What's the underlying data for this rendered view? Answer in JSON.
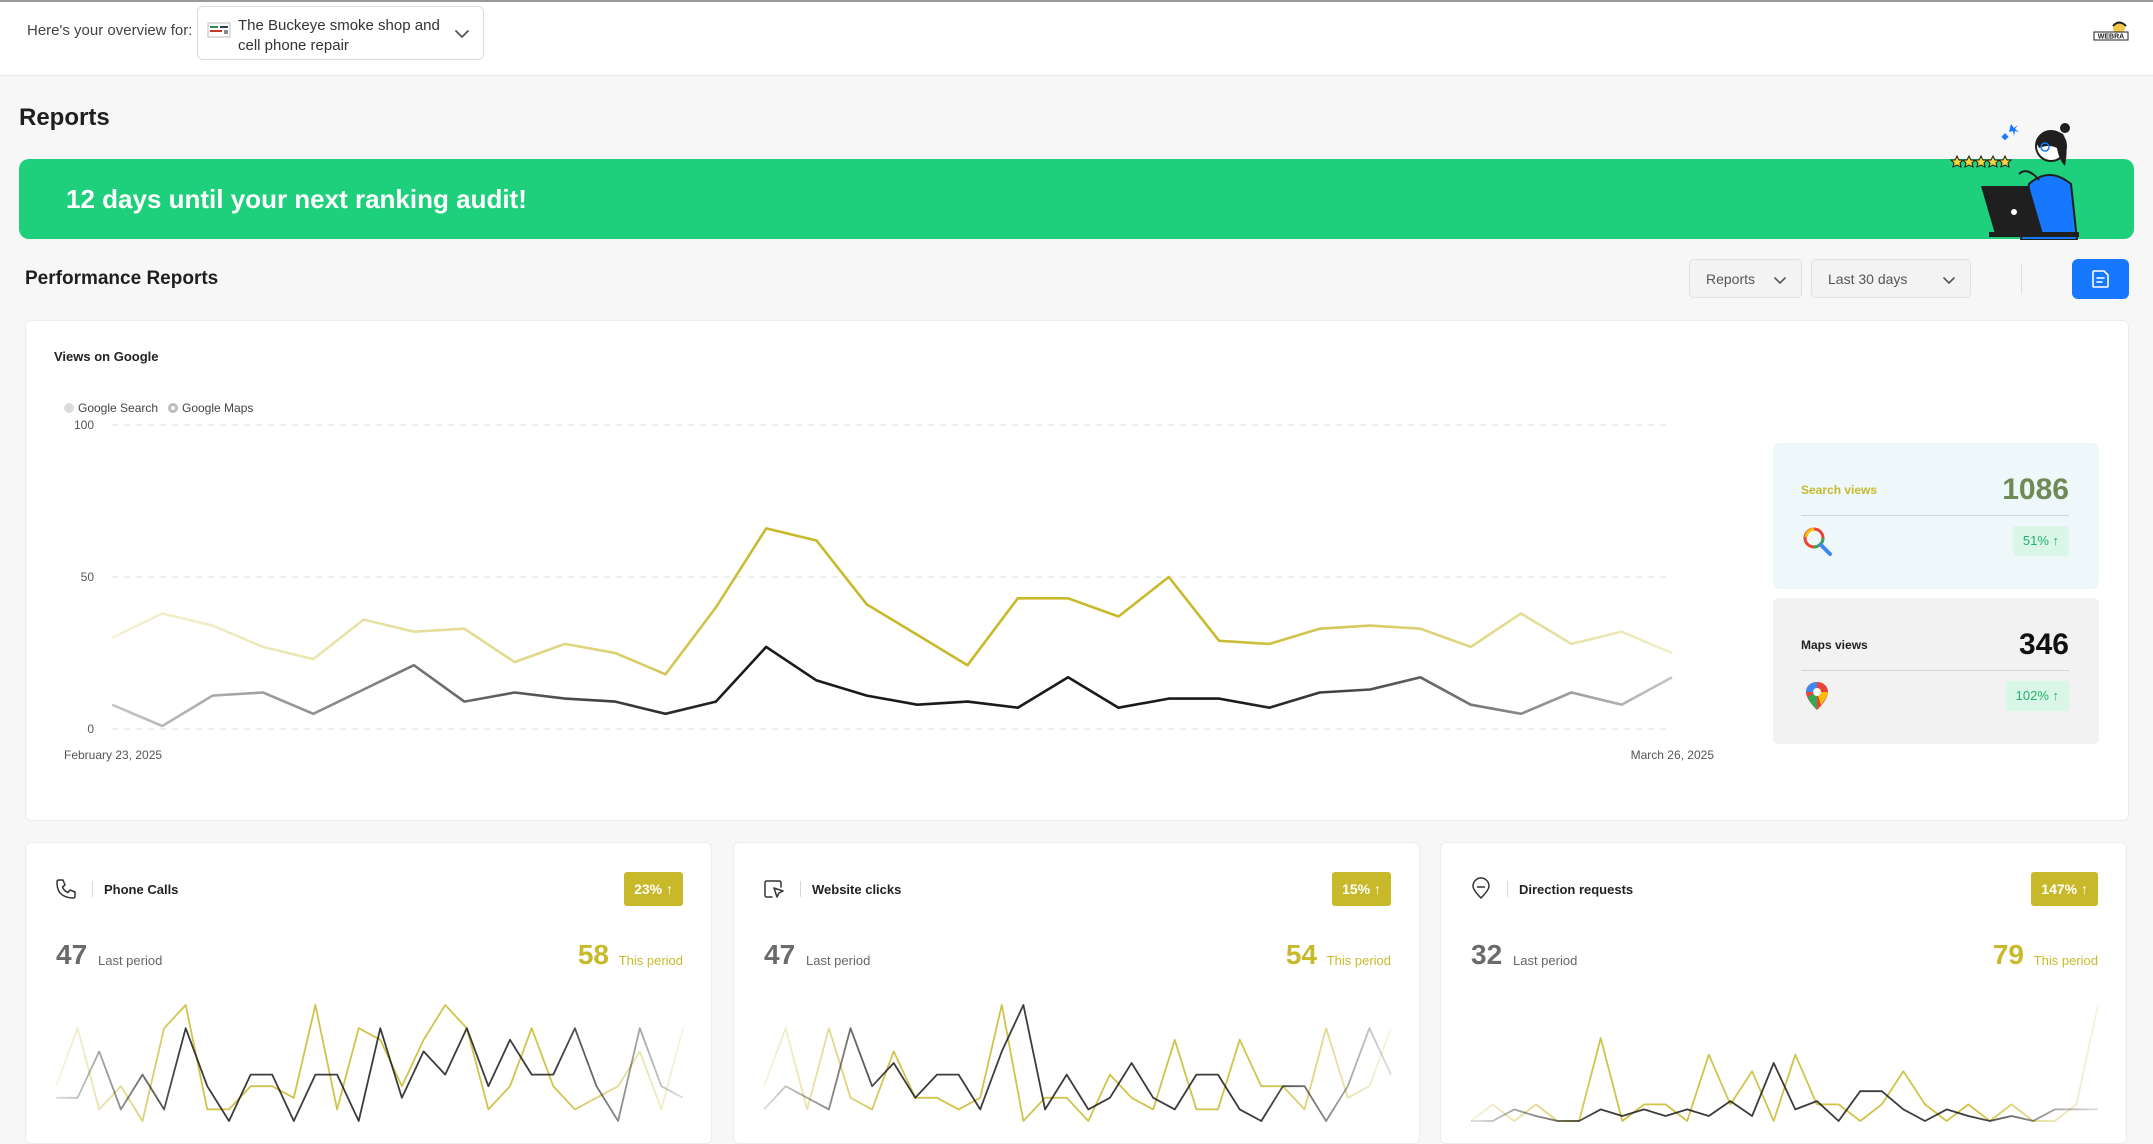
{
  "header": {
    "overview_label": "Here's your overview for:",
    "business_name": "The Buckeye smoke shop and cell phone repair",
    "brand_icon": "webra-logo"
  },
  "page": {
    "title": "Reports",
    "banner_text": "12 days until your next ranking audit!"
  },
  "performance": {
    "section_title": "Performance Reports",
    "reports_dropdown": "Reports",
    "range_dropdown": "Last 30 days",
    "export_icon": "document-icon"
  },
  "views_card": {
    "title": "Views on Google",
    "search_views_label": "Search views",
    "search_views_value": "1086",
    "search_views_change": "51% ↑",
    "maps_views_label": "Maps views",
    "maps_views_value": "346",
    "maps_views_change": "102% ↑"
  },
  "chart_data": {
    "type": "line",
    "title": "Views on Google",
    "ylim": [
      0,
      100
    ],
    "y_ticks": [
      "100",
      "50",
      "0"
    ],
    "x_start_label": "February 23, 2025",
    "x_end_label": "March 26, 2025",
    "x_range": [
      "2025-02-23",
      "2025-03-26"
    ],
    "grid": true,
    "legend_position": "top-left",
    "series": [
      {
        "name": "Google Search",
        "color": "#c8b92b",
        "values": [
          30,
          38,
          34,
          27,
          23,
          36,
          32,
          33,
          22,
          28,
          25,
          18,
          40,
          66,
          62,
          41,
          31,
          21,
          43,
          43,
          37,
          50,
          29,
          28,
          33,
          34,
          33,
          27,
          38,
          28,
          32,
          25
        ]
      },
      {
        "name": "Google Maps",
        "color": "#1a1a1a",
        "values": [
          8,
          1,
          11,
          12,
          5,
          13,
          21,
          9,
          12,
          10,
          9,
          5,
          9,
          27,
          16,
          11,
          8,
          9,
          7,
          17,
          7,
          10,
          10,
          7,
          12,
          13,
          17,
          8,
          5,
          12,
          8,
          17
        ]
      }
    ]
  },
  "metrics": [
    {
      "title": "Phone Calls",
      "icon": "phone-icon",
      "change": "23% ↑",
      "last_value": "47",
      "last_label": "Last period",
      "this_value": "58",
      "this_label": "This period",
      "this_series": [
        3,
        8,
        1,
        3,
        0,
        8,
        10,
        1,
        1,
        3,
        3,
        2,
        10,
        1,
        8,
        7,
        3,
        7,
        10,
        8,
        1,
        3,
        8,
        3,
        1,
        2,
        3,
        6,
        1,
        8
      ],
      "last_series": [
        2,
        2,
        6,
        1,
        4,
        1,
        8,
        3,
        0,
        4,
        4,
        0,
        4,
        4,
        0,
        8,
        2,
        6,
        4,
        8,
        3,
        7,
        4,
        4,
        8,
        3,
        0,
        8,
        3,
        2
      ]
    },
    {
      "title": "Website clicks",
      "icon": "cursor-click-icon",
      "change": "15% ↑",
      "last_value": "47",
      "last_label": "Last period",
      "this_value": "54",
      "this_label": "This period",
      "this_series": [
        3,
        8,
        1,
        8,
        2,
        1,
        6,
        2,
        2,
        1,
        2,
        10,
        0,
        2,
        2,
        0,
        4,
        2,
        1,
        7,
        1,
        1,
        7,
        3,
        3,
        1,
        8,
        2,
        3,
        8
      ],
      "last_series": [
        1,
        3,
        2,
        1,
        8,
        3,
        5,
        2,
        4,
        4,
        1,
        6,
        10,
        1,
        4,
        1,
        2,
        5,
        2,
        1,
        4,
        4,
        1,
        0,
        3,
        3,
        0,
        3,
        8,
        4
      ]
    },
    {
      "title": "Direction requests",
      "icon": "map-pin-icon",
      "change": "147% ↑",
      "last_value": "32",
      "last_label": "Last period",
      "this_value": "79",
      "this_label": "This period",
      "this_series": [
        0,
        1,
        0,
        1,
        0,
        0,
        5,
        0,
        1,
        1,
        0,
        4,
        1,
        3,
        0,
        4,
        1,
        1,
        0,
        1,
        3,
        1,
        0,
        1,
        0,
        1,
        0,
        0,
        1,
        7
      ],
      "last_series": [
        0,
        0,
        0.7,
        0.3,
        0,
        0,
        0.7,
        0.3,
        0.7,
        0.3,
        0.7,
        0.3,
        1.2,
        0.3,
        3.5,
        0.7,
        1.2,
        0,
        1.8,
        1.8,
        0.7,
        0,
        0.7,
        0.3,
        0,
        0.3,
        0,
        0.7,
        0.7,
        0.7
      ]
    }
  ]
}
